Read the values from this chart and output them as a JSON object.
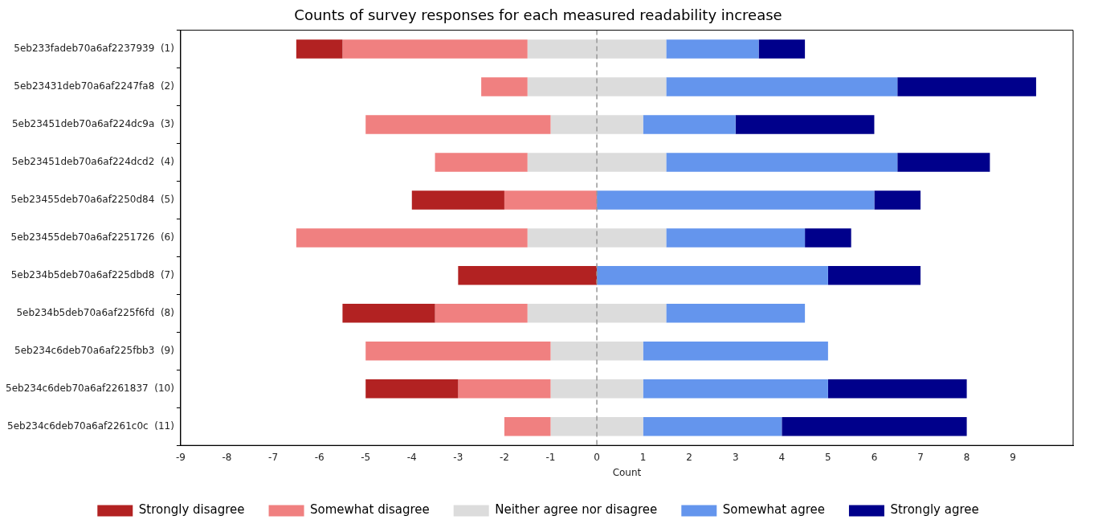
{
  "chart_data": {
    "type": "bar",
    "orientation": "horizontal",
    "title": "Counts of survey responses for each measured readability increase",
    "xlabel": "Count",
    "categories": [
      "5eb233fadeb70a6af2237939  (1)",
      "5eb23431deb70a6af2247fa8  (2)",
      "5eb23451deb70a6af224dc9a  (3)",
      "5eb23451deb70a6af224dcd2  (4)",
      "5eb23455deb70a6af2250d84  (5)",
      "5eb23455deb70a6af2251726  (6)",
      "5eb234b5deb70a6af225dbd8  (7)",
      "5eb234b5deb70a6af225f6fd  (8)",
      "5eb234c6deb70a6af225fbb3  (9)",
      "5eb234c6deb70a6af2261837  (10)",
      "5eb234c6deb70a6af2261c0c  (11)"
    ],
    "series": [
      {
        "name": "Strongly disagree",
        "color": "#b22222",
        "base": [
          -6.5,
          null,
          null,
          null,
          -4,
          null,
          -3,
          -5.5,
          null,
          -5,
          null
        ],
        "values": [
          1,
          null,
          null,
          null,
          2,
          null,
          3,
          2,
          null,
          2,
          null
        ]
      },
      {
        "name": "Somewhat disagree",
        "color": "#f08080",
        "base": [
          -5.5,
          -2.5,
          -5,
          -3.5,
          -2,
          -6.5,
          null,
          -3.5,
          -5,
          -3,
          -2
        ],
        "values": [
          4,
          1,
          4,
          2,
          2,
          5,
          null,
          2,
          4,
          2,
          1
        ]
      },
      {
        "name": "Neither agree nor disagree",
        "color": "#dcdcdc",
        "base": [
          -1.5,
          -1.5,
          -1,
          -1.5,
          null,
          -1.5,
          null,
          -1.5,
          -1,
          -1,
          -1
        ],
        "values": [
          3,
          3,
          2,
          3,
          null,
          3,
          null,
          3,
          2,
          2,
          2
        ]
      },
      {
        "name": "Somewhat agree",
        "color": "#6495ed",
        "base": [
          1.5,
          1.5,
          1,
          1.5,
          0,
          1.5,
          0,
          1.5,
          1,
          1,
          1
        ],
        "values": [
          2,
          5,
          2,
          5,
          6,
          3,
          5,
          3,
          4,
          4,
          3
        ]
      },
      {
        "name": "Strongly agree",
        "color": "#00008b",
        "base": [
          3.5,
          6.5,
          3,
          6.5,
          6,
          4.5,
          5,
          null,
          null,
          5,
          4
        ],
        "values": [
          1,
          3,
          3,
          2,
          1,
          1,
          2,
          null,
          null,
          3,
          4
        ]
      }
    ],
    "xlim": [
      -9,
      10.3
    ],
    "xticks": [
      -9,
      -8,
      -7,
      -6,
      -5,
      -4,
      -3,
      -2,
      -1,
      0,
      1,
      2,
      3,
      4,
      5,
      6,
      7,
      8,
      9
    ],
    "ref_lines": [
      {
        "axis": "x",
        "value": 0,
        "color": "#999999",
        "line_style": "dashed"
      }
    ],
    "grid": false,
    "legend": "bottom"
  }
}
